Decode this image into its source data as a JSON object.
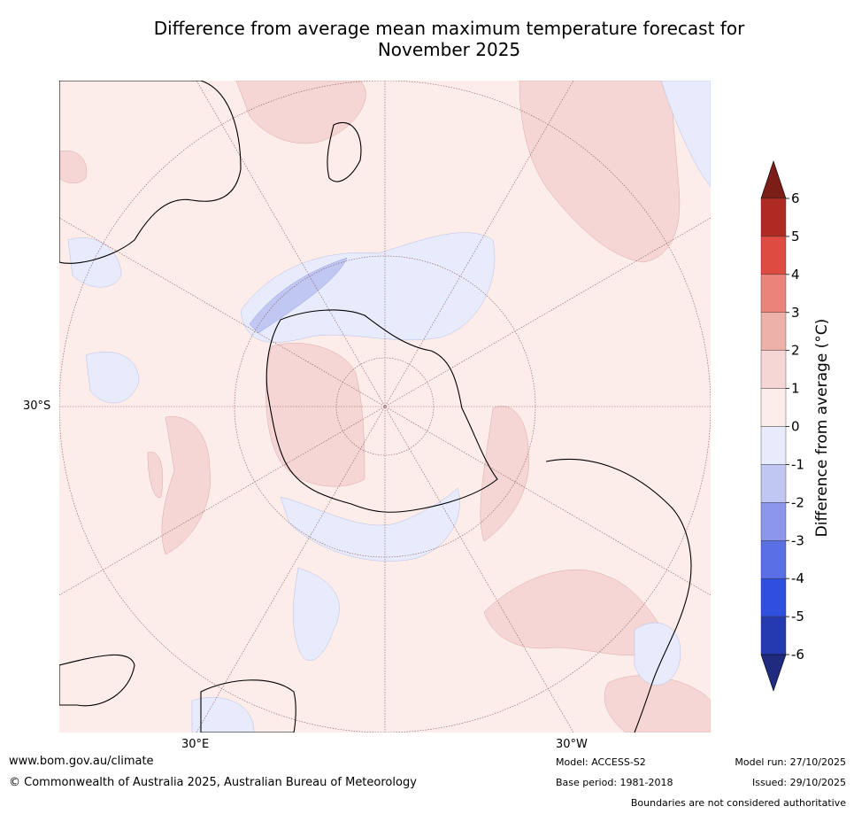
{
  "title": {
    "line1": "Difference from average mean maximum temperature forecast for",
    "line2": "November 2025"
  },
  "map": {
    "projection": "south-polar-stereographic",
    "lat_label": "30°S",
    "lon_labels": [
      "30°E",
      "30°W"
    ],
    "land_outline_color": "#000000",
    "graticule_color": "#8a5a5a"
  },
  "colorbar": {
    "title": "Difference from average (°C)",
    "ticks": [
      "6",
      "5",
      "4",
      "3",
      "2",
      "1",
      "0",
      "-1",
      "-2",
      "-3",
      "-4",
      "-5",
      "-6"
    ],
    "bins": [
      {
        "range": "6 to 5",
        "color": "#ae2a22"
      },
      {
        "range": "5 to 4",
        "color": "#de4b41"
      },
      {
        "range": "4 to 3",
        "color": "#ea847b"
      },
      {
        "range": "3 to 2",
        "color": "#eeb1aa"
      },
      {
        "range": "2 to 1",
        "color": "#f5d6d4"
      },
      {
        "range": "1 to 0",
        "color": "#fcecea"
      },
      {
        "range": "0 to -1",
        "color": "#e8ebfb"
      },
      {
        "range": "-1 to -2",
        "color": "#c1c7f3"
      },
      {
        "range": "-2 to -3",
        "color": "#8b96ec"
      },
      {
        "range": "-3 to -4",
        "color": "#5b6fe4"
      },
      {
        "range": "-4 to -5",
        "color": "#2f4fdf"
      },
      {
        "range": "-5 to -6",
        "color": "#263ab0"
      }
    ],
    "over_color": "#7c1e18",
    "under_color": "#1f2b7e"
  },
  "footer": {
    "website": "www.bom.gov.au/climate",
    "copyright": "© Commonwealth of Australia 2025, Australian Bureau of Meteorology",
    "model": "Model: ACCESS-S2",
    "base_period": "Base period: 1981-2018",
    "model_run": "Model run: 27/10/2025",
    "issued": "Issued: 29/10/2025",
    "disclaimer": "Boundaries are not considered authoritative"
  }
}
